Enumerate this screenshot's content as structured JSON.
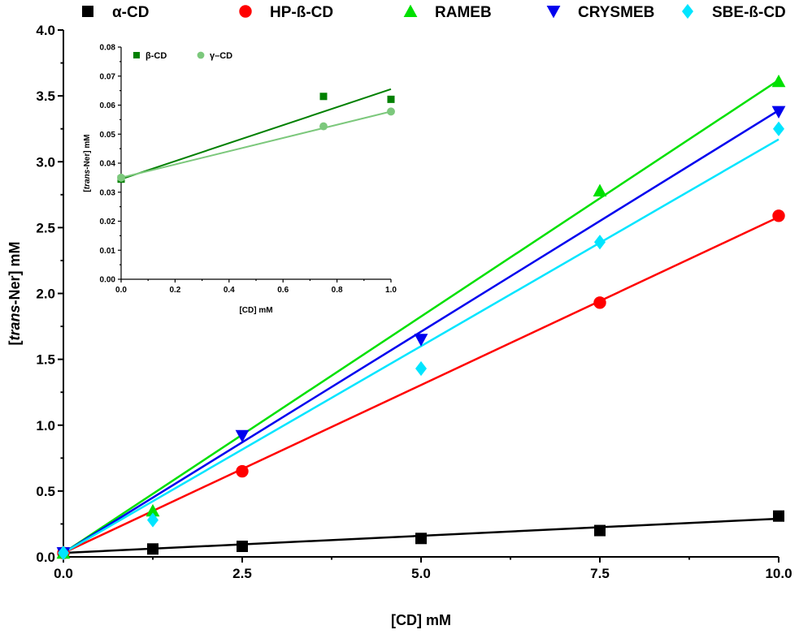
{
  "chart_data": [
    {
      "type": "scatter",
      "xlabel": "[CD] mM",
      "ylabel_parts": [
        "[",
        "trans",
        "-Ner] mM"
      ],
      "xlim": [
        0,
        10
      ],
      "ylim": [
        0,
        4.0
      ],
      "xticks": [
        "0.0",
        "2.5",
        "5.0",
        "7.5",
        "10.0"
      ],
      "yticks": [
        "0.0",
        "0.5",
        "1.0",
        "1.5",
        "2.0",
        "2.5",
        "3.0",
        "3.5",
        "4.0"
      ],
      "grid": false,
      "legend_position": "top",
      "series": [
        {
          "name": "α-CD",
          "color": "#000000",
          "marker": "square",
          "x": [
            0,
            1.25,
            2.5,
            5,
            7.5,
            10
          ],
          "y": [
            0.03,
            0.06,
            0.08,
            0.14,
            0.2,
            0.31
          ],
          "fit": [
            0.03,
            0.29
          ]
        },
        {
          "name": "HP-ß-CD",
          "color": "#ff0000",
          "marker": "circle",
          "x": [
            0,
            2.5,
            7.5,
            10
          ],
          "y": [
            0.03,
            0.65,
            1.93,
            2.59
          ],
          "fit": [
            0.03,
            2.58
          ]
        },
        {
          "name": "RAMEB",
          "color": "#00e000",
          "marker": "triangle-up",
          "x": [
            0,
            1.25,
            7.5,
            10
          ],
          "y": [
            0.03,
            0.35,
            2.78,
            3.61
          ],
          "fit": [
            0.03,
            3.62
          ]
        },
        {
          "name": "CRYSMEB",
          "color": "#0000ee",
          "marker": "triangle-down",
          "x": [
            0,
            2.5,
            5,
            10
          ],
          "y": [
            0.03,
            0.92,
            1.65,
            3.38
          ],
          "fit": [
            0.03,
            3.39
          ]
        },
        {
          "name": "SBE-ß-CD",
          "color": "#00e5ff",
          "marker": "diamond",
          "x": [
            0,
            1.25,
            5,
            7.5,
            10
          ],
          "y": [
            0.03,
            0.28,
            1.43,
            2.39,
            3.25
          ],
          "fit": [
            0.03,
            3.17
          ]
        }
      ]
    },
    {
      "type": "scatter",
      "xlabel": "[CD] mM",
      "ylabel_parts": [
        "[",
        "trans",
        "-Ner] mM"
      ],
      "xlim": [
        0,
        1.0
      ],
      "ylim": [
        0,
        0.08
      ],
      "xticks": [
        "0.0",
        "0.2",
        "0.4",
        "0.6",
        "0.8",
        "1.0"
      ],
      "yticks": [
        "0.00",
        "0.01",
        "0.02",
        "0.03",
        "0.04",
        "0.05",
        "0.06",
        "0.07",
        "0.08"
      ],
      "grid": false,
      "legend_position": "top-left",
      "series": [
        {
          "name": "β-CD",
          "color": "#008000",
          "marker": "square",
          "x": [
            0,
            0.75,
            1.0
          ],
          "y": [
            0.0345,
            0.063,
            0.062
          ],
          "fit": [
            0.0345,
            0.0655
          ]
        },
        {
          "name": "γ–CD",
          "color": "#7cc87c",
          "marker": "circle",
          "x": [
            0,
            0.75,
            1.0
          ],
          "y": [
            0.035,
            0.0527,
            0.0578
          ],
          "fit": [
            0.035,
            0.0578
          ]
        }
      ]
    }
  ]
}
